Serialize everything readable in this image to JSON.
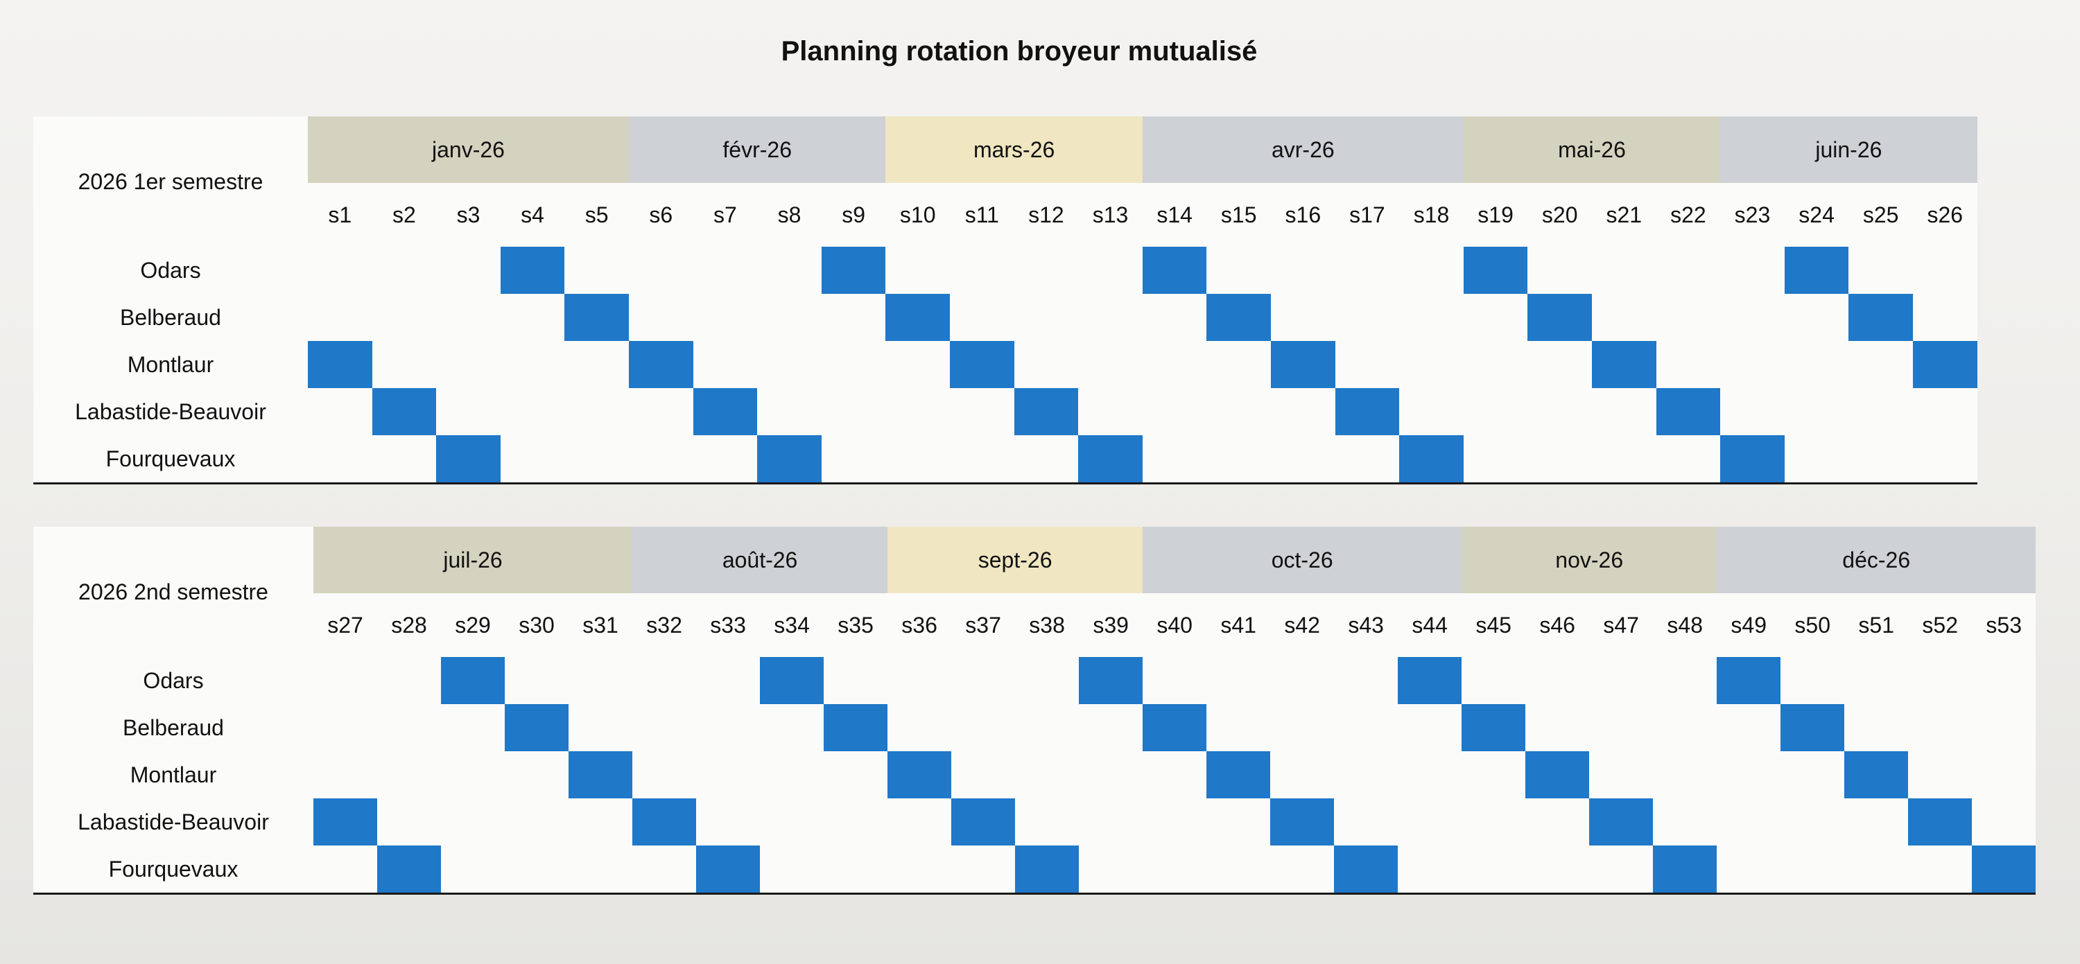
{
  "title": "Planning rotation broyeur mutualisé",
  "colors": {
    "filled": "#1f78c8",
    "month_olive": "#d4d3bf",
    "month_gray": "#ced1d5",
    "month_yellow": "#f0e6c2"
  },
  "semesters": [
    {
      "label": "2026 1er semestre",
      "months": [
        {
          "label": "janv-26",
          "weeks": 5,
          "color": "#d4d3bf"
        },
        {
          "label": "févr-26",
          "weeks": 4,
          "color": "#ced1d5"
        },
        {
          "label": "mars-26",
          "weeks": 4,
          "color": "#f0e6c2"
        },
        {
          "label": "avr-26",
          "weeks": 5,
          "color": "#ced1d5"
        },
        {
          "label": "mai-26",
          "weeks": 4,
          "color": "#d4d3bf"
        },
        {
          "label": "juin-26",
          "weeks": 4,
          "color": "#ced1d5"
        }
      ],
      "week_labels": [
        "s1",
        "s2",
        "s3",
        "s4",
        "s5",
        "s6",
        "s7",
        "s8",
        "s9",
        "s10",
        "s11",
        "s12",
        "s13",
        "s14",
        "s15",
        "s16",
        "s17",
        "s18",
        "s19",
        "s20",
        "s21",
        "s22",
        "s23",
        "s24",
        "s25",
        "s26"
      ],
      "sites": [
        {
          "name": "Odars",
          "weeks": [
            4,
            9,
            14,
            19,
            24
          ]
        },
        {
          "name": "Belberaud",
          "weeks": [
            5,
            10,
            15,
            20,
            25
          ]
        },
        {
          "name": "Montlaur",
          "weeks": [
            1,
            6,
            11,
            16,
            21,
            26
          ]
        },
        {
          "name": "Labastide-Beauvoir",
          "weeks": [
            2,
            7,
            12,
            17,
            22
          ]
        },
        {
          "name": "Fourquevaux",
          "weeks": [
            3,
            8,
            13,
            18,
            23
          ]
        }
      ]
    },
    {
      "label": "2026 2nd semestre",
      "months": [
        {
          "label": "juil-26",
          "weeks": 5,
          "color": "#d4d3bf"
        },
        {
          "label": "août-26",
          "weeks": 4,
          "color": "#ced1d5"
        },
        {
          "label": "sept-26",
          "weeks": 4,
          "color": "#f0e6c2"
        },
        {
          "label": "oct-26",
          "weeks": 5,
          "color": "#ced1d5"
        },
        {
          "label": "nov-26",
          "weeks": 4,
          "color": "#d4d3bf"
        },
        {
          "label": "déc-26",
          "weeks": 5,
          "color": "#ced1d5"
        }
      ],
      "week_labels": [
        "s27",
        "s28",
        "s29",
        "s30",
        "s31",
        "s32",
        "s33",
        "s34",
        "s35",
        "s36",
        "s37",
        "s38",
        "s39",
        "s40",
        "s41",
        "s42",
        "s43",
        "s44",
        "s45",
        "s46",
        "s47",
        "s48",
        "s49",
        "s50",
        "s51",
        "s52",
        "s53"
      ],
      "sites": [
        {
          "name": "Odars",
          "weeks": [
            29,
            34,
            39,
            44,
            49
          ]
        },
        {
          "name": "Belberaud",
          "weeks": [
            30,
            35,
            40,
            45,
            50
          ]
        },
        {
          "name": "Montlaur",
          "weeks": [
            31,
            36,
            41,
            46,
            51
          ]
        },
        {
          "name": "Labastide-Beauvoir",
          "weeks": [
            27,
            32,
            37,
            42,
            47,
            52
          ]
        },
        {
          "name": "Fourquevaux",
          "weeks": [
            28,
            33,
            38,
            43,
            48,
            53
          ]
        }
      ]
    }
  ]
}
